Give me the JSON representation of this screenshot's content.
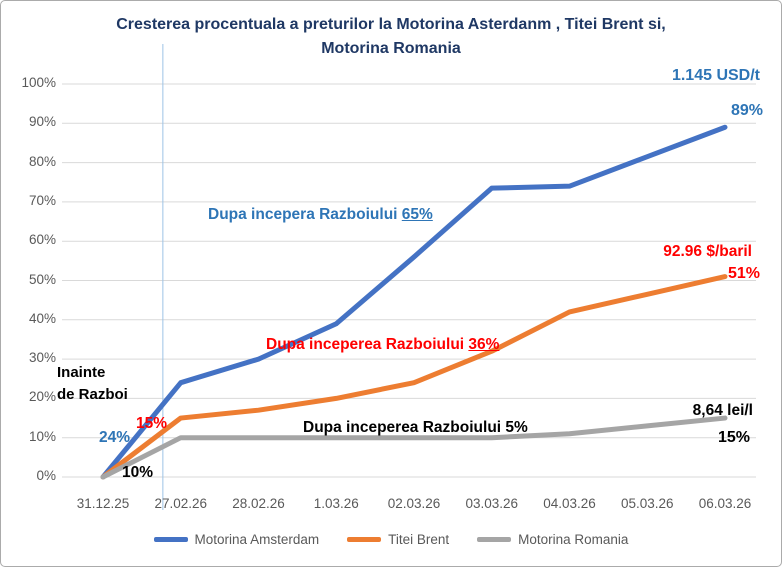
{
  "chart_data": {
    "type": "line",
    "title": "Cresterea procentuala a preturilor la Motorina Asterdanm , Titei Brent si, Motorina Romania",
    "title_line1": "Cresterea procentuala a preturilor la Motorina Asterdanm , Titei Brent si,",
    "title_line2": "Motorina Romania",
    "categories": [
      "31.12.25",
      "27.02.26",
      "28.02.26",
      "1.03.26",
      "02.03.26",
      "03.03.26",
      "04.03.26",
      "05.03.26",
      "06.03.26"
    ],
    "series": [
      {
        "name": "Motorina Amsterdam",
        "color": "#4472C4",
        "values": [
          0,
          24,
          30,
          39,
          56,
          73.5,
          74,
          81.5,
          89
        ]
      },
      {
        "name": "Titei Brent",
        "color": "#ED7D31",
        "values": [
          0,
          15,
          17,
          20,
          24,
          32,
          42,
          46.5,
          51
        ]
      },
      {
        "name": "Motorina Romania",
        "color": "#A5A5A5",
        "values": [
          0,
          10,
          10,
          10,
          10,
          10,
          11,
          13,
          15
        ]
      }
    ],
    "ylim": [
      0,
      100
    ],
    "y_tick_step": 10,
    "y_tick_suffix": "%",
    "grid": true,
    "legend_position": "bottom",
    "war_start_marker": {
      "between": [
        "31.12.25",
        "27.02.26"
      ],
      "fraction": 0.77
    }
  },
  "annotations": {
    "amsterdam_price": "1.145 USD/t",
    "amsterdam_final": "89%",
    "amsterdam_after_war": {
      "text": "Dupa incepera Razboiului ",
      "pct": "65%"
    },
    "brent_price": "92.96 $/baril",
    "brent_final": "51%",
    "brent_after_war": {
      "text": "Dupa inceperea Razboiului ",
      "pct": "36%"
    },
    "romania_after_war": "Dupa inceperea Razboiului 5%",
    "romania_price": "8,64 lei/l",
    "romania_final": "15%",
    "before_war_line1": "Inainte",
    "before_war_line2": "de Razboi",
    "amsterdam_prewar": "24%",
    "brent_prewar": "15%",
    "romania_prewar": "10%"
  },
  "colors": {
    "title": "#1F3864",
    "blue_annotation": "#2E75B6",
    "red_annotation": "#FF0000",
    "black_annotation": "#000000",
    "axis_text": "#595959",
    "gridline": "#D9D9D9",
    "war_line": "#9DC3E6"
  }
}
